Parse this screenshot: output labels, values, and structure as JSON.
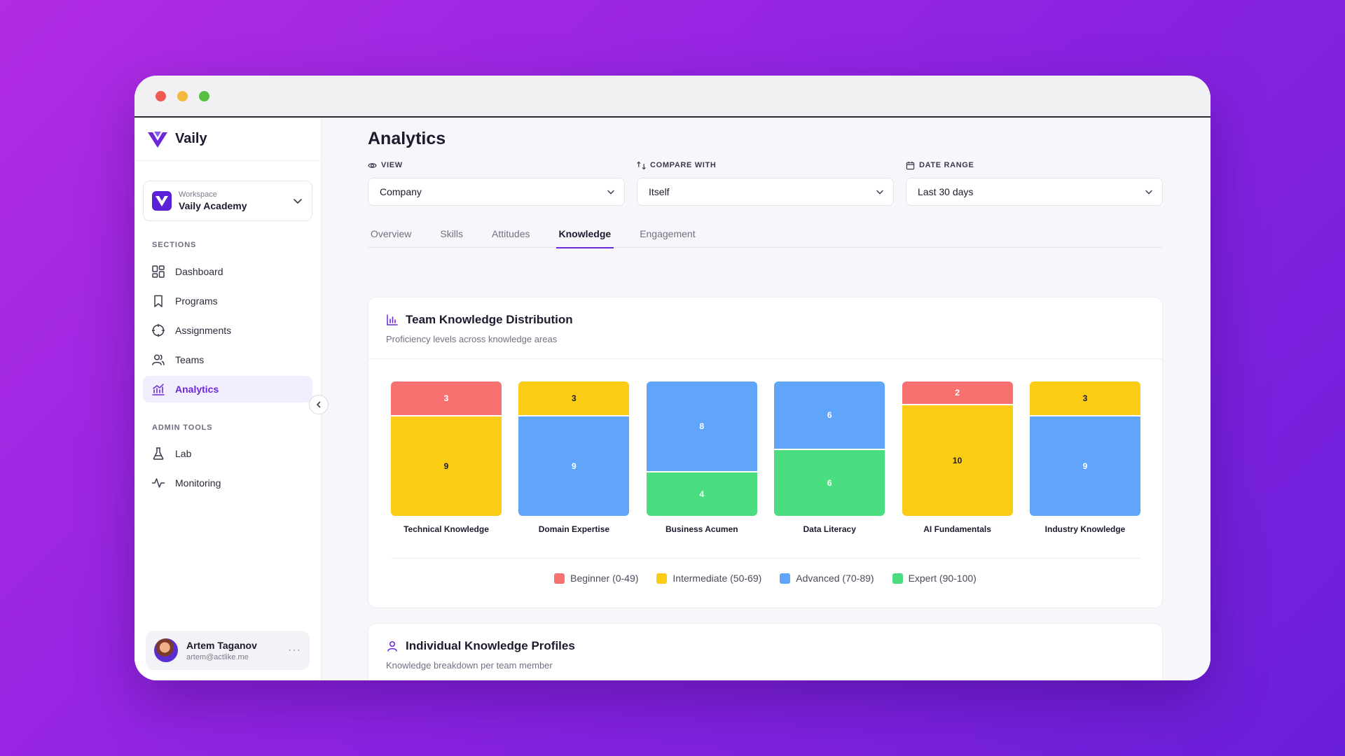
{
  "colors": {
    "beginner": "#f87171",
    "intermediate": "#facc15",
    "advanced": "#60a5fa",
    "expert": "#4ade80",
    "accent": "#6d28d9"
  },
  "brand": {
    "name": "Vaily"
  },
  "workspace": {
    "label": "Workspace",
    "name": "Vaily Academy"
  },
  "sidebar": {
    "sections_label": "SECTIONS",
    "admin_label": "ADMIN TOOLS",
    "items": [
      {
        "label": "Dashboard",
        "icon": "dashboard-icon"
      },
      {
        "label": "Programs",
        "icon": "bookmark-icon"
      },
      {
        "label": "Assignments",
        "icon": "target-icon"
      },
      {
        "label": "Teams",
        "icon": "users-icon"
      },
      {
        "label": "Analytics",
        "icon": "analytics-icon",
        "active": true
      }
    ],
    "admin_items": [
      {
        "label": "Lab",
        "icon": "flask-icon"
      },
      {
        "label": "Monitoring",
        "icon": "activity-icon"
      }
    ]
  },
  "user": {
    "name": "Artem Taganov",
    "email": "artem@actlike.me",
    "more": "···"
  },
  "main": {
    "title": "Analytics",
    "filters": [
      {
        "label": "VIEW",
        "value": "Company",
        "icon": "eye-icon"
      },
      {
        "label": "COMPARE WITH",
        "value": "Itself",
        "icon": "compare-icon"
      },
      {
        "label": "DATE RANGE",
        "value": "Last 30 days",
        "icon": "calendar-icon"
      }
    ],
    "tabs": [
      "Overview",
      "Skills",
      "Attitudes",
      "Knowledge",
      "Engagement"
    ],
    "active_tab": "Knowledge"
  },
  "distribution_card": {
    "title": "Team Knowledge Distribution",
    "subtitle": "Proficiency levels across knowledge areas"
  },
  "profiles_card": {
    "title": "Individual Knowledge Profiles",
    "subtitle": "Knowledge breakdown per team member"
  },
  "chart_data": {
    "type": "bar",
    "stacked": true,
    "normalized": true,
    "categories": [
      "Technical Knowledge",
      "Domain Expertise",
      "Business Acumen",
      "Data Literacy",
      "AI Fundamentals",
      "Industry Knowledge"
    ],
    "series": [
      {
        "name": "Beginner (0-49)",
        "key": "beginner",
        "values": [
          3,
          0,
          0,
          0,
          2,
          0
        ]
      },
      {
        "name": "Intermediate (50-69)",
        "key": "intermediate",
        "values": [
          9,
          3,
          0,
          0,
          10,
          3
        ]
      },
      {
        "name": "Advanced (70-89)",
        "key": "advanced",
        "values": [
          0,
          9,
          8,
          6,
          0,
          9
        ]
      },
      {
        "name": "Expert (90-100)",
        "key": "expert",
        "values": [
          0,
          0,
          4,
          6,
          0,
          0
        ]
      }
    ],
    "legend_position": "bottom"
  }
}
